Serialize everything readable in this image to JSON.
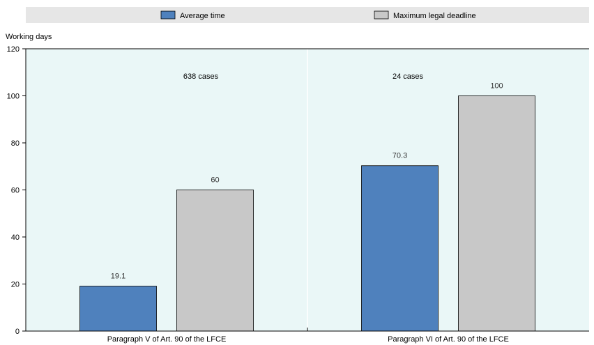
{
  "chart_data": {
    "type": "bar",
    "title": "",
    "xlabel": "",
    "ylabel": "Working days",
    "ylim": [
      0,
      120
    ],
    "yticks": [
      0,
      20,
      40,
      60,
      80,
      100,
      120
    ],
    "grid": false,
    "legend_position": "top",
    "categories": [
      "Paragraph V of Art. 90 of the LFCE",
      "Paragraph VI of Art. 90 of the LFCE"
    ],
    "series": [
      {
        "name": "Average time",
        "values": [
          19.1,
          70.3
        ],
        "color": "#4F81BD"
      },
      {
        "name": "Maximum legal deadline",
        "values": [
          60,
          100
        ],
        "color": "#C8C8C8"
      }
    ],
    "data_labels": [
      [
        "19.1",
        "70.3"
      ],
      [
        "60",
        "100"
      ]
    ],
    "annotations": [
      "638 cases",
      "24 cases"
    ],
    "plot_background": "#EAF7F7",
    "legend_background": "#E6E6E6"
  }
}
